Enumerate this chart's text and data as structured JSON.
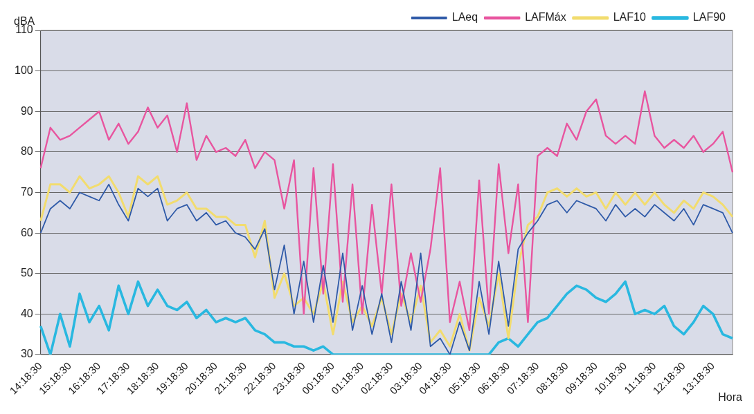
{
  "chart_data": {
    "type": "line",
    "ylabel": "dBA",
    "xlabel": "Hora",
    "categories": [
      "14:18:30",
      null,
      null,
      "15:18:30",
      null,
      null,
      "16:18:30",
      null,
      null,
      "17:18:30",
      null,
      null,
      "18:18:30",
      null,
      null,
      "19:18:30",
      null,
      null,
      "20:18:30",
      null,
      null,
      "21:18:30",
      null,
      null,
      "22:18:30",
      null,
      null,
      "23:18:30",
      null,
      null,
      "00:18:30",
      null,
      null,
      "01:18:30",
      null,
      null,
      "02:18:30",
      null,
      null,
      "03:18:30",
      null,
      null,
      "04:18:30",
      null,
      null,
      "05:18:30",
      null,
      null,
      "06:18:30",
      null,
      null,
      "07:18:30",
      null,
      null,
      "08:18:30",
      null,
      null,
      "09:18:30",
      null,
      null,
      "10:18:30",
      null,
      null,
      "11:18:30",
      null,
      null,
      "12:18:30",
      null,
      null,
      "13:18:30",
      null,
      null
    ],
    "series": [
      {
        "name": "LAeq",
        "color": "#2f5aa8",
        "values": [
          60,
          66,
          68,
          66,
          70,
          69,
          68,
          72,
          67,
          63,
          71,
          69,
          71,
          63,
          66,
          67,
          63,
          65,
          62,
          63,
          60,
          59,
          56,
          61,
          46,
          57,
          40,
          53,
          38,
          52,
          38,
          55,
          36,
          47,
          35,
          45,
          33,
          48,
          36,
          55,
          32,
          34,
          30,
          38,
          31,
          48,
          35,
          53,
          37,
          56,
          60,
          63,
          67,
          68,
          65,
          68,
          67,
          66,
          63,
          67,
          64,
          66,
          64,
          67,
          65,
          63,
          66,
          62,
          67,
          66,
          65,
          60
        ]
      },
      {
        "name": "LAFMáx",
        "color": "#e8559f",
        "values": [
          76,
          86,
          83,
          84,
          86,
          88,
          90,
          83,
          87,
          82,
          85,
          91,
          86,
          89,
          80,
          92,
          78,
          84,
          80,
          81,
          79,
          83,
          76,
          80,
          78,
          66,
          78,
          40,
          76,
          45,
          77,
          43,
          72,
          40,
          67,
          45,
          72,
          42,
          55,
          43,
          56,
          76,
          38,
          48,
          36,
          73,
          40,
          77,
          55,
          72,
          38,
          79,
          81,
          79,
          87,
          83,
          90,
          93,
          84,
          82,
          84,
          82,
          95,
          84,
          81,
          83,
          81,
          84,
          80,
          82,
          85,
          75
        ]
      },
      {
        "name": "LAF10",
        "color": "#f2dc6e",
        "values": [
          63,
          72,
          72,
          70,
          74,
          71,
          72,
          74,
          70,
          64,
          74,
          72,
          74,
          67,
          68,
          70,
          66,
          66,
          64,
          64,
          62,
          62,
          54,
          63,
          44,
          50,
          42,
          44,
          40,
          48,
          35,
          48,
          38,
          42,
          37,
          44,
          35,
          45,
          38,
          47,
          33,
          36,
          32,
          40,
          31,
          44,
          37,
          50,
          34,
          52,
          62,
          64,
          70,
          71,
          69,
          71,
          69,
          70,
          66,
          70,
          67,
          70,
          67,
          70,
          67,
          65,
          68,
          66,
          70,
          69,
          67,
          64
        ]
      },
      {
        "name": "LAF90",
        "color": "#29b8e0",
        "values": [
          37,
          30,
          40,
          32,
          45,
          38,
          42,
          36,
          47,
          40,
          48,
          42,
          46,
          42,
          41,
          43,
          39,
          41,
          38,
          39,
          38,
          39,
          36,
          35,
          33,
          33,
          32,
          32,
          31,
          32,
          30,
          30,
          30,
          30,
          30,
          30,
          30,
          30,
          30,
          30,
          30,
          30,
          30,
          30,
          30,
          30,
          30,
          33,
          34,
          32,
          35,
          38,
          39,
          42,
          45,
          47,
          46,
          44,
          43,
          45,
          48,
          40,
          41,
          40,
          42,
          37,
          35,
          38,
          42,
          40,
          35,
          34
        ]
      }
    ],
    "ylim": [
      30,
      110
    ],
    "yticks": [
      30,
      40,
      50,
      60,
      70,
      80,
      90,
      100,
      110
    ],
    "grid": "y",
    "legend": "top right",
    "marker": "none",
    "line_style": "solid"
  }
}
